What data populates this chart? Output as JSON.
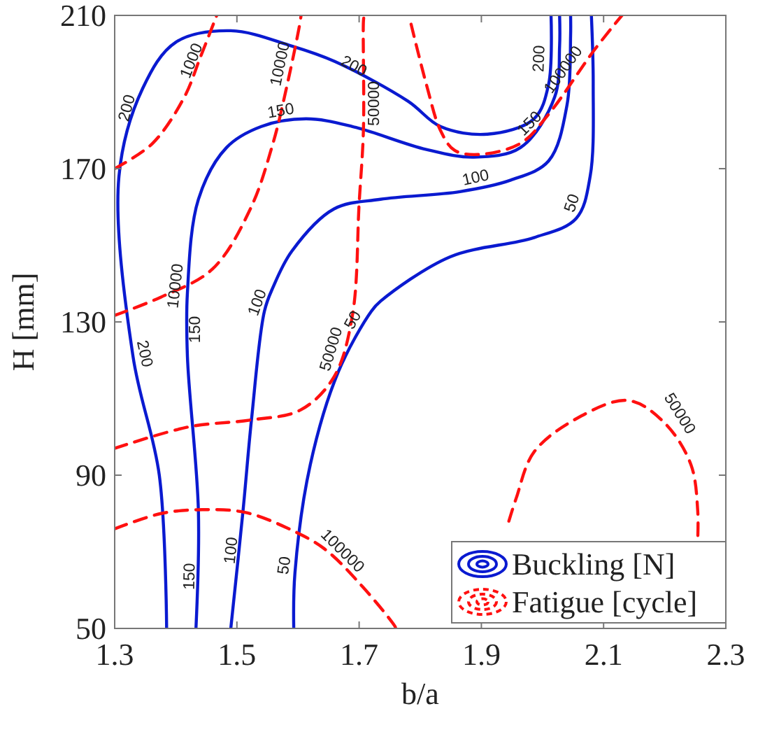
{
  "chart_data": {
    "type": "line",
    "xlabel": "b/a",
    "ylabel": "H [mm]",
    "xlim": [
      1.3,
      2.3
    ],
    "ylim": [
      50,
      210
    ],
    "xticks": [
      1.3,
      1.5,
      1.7,
      1.9,
      2.1,
      2.3
    ],
    "yticks": [
      50,
      90,
      130,
      170,
      210
    ],
    "grid": false,
    "legend": "bottom right",
    "series": [
      {
        "name": "Buckling [N]",
        "color": "#0a1ad0",
        "line_style": "solid",
        "x": [
          1.385,
          1.373,
          1.33,
          1.307,
          1.346,
          1.4,
          1.49,
          1.59,
          1.66,
          1.78,
          1.833,
          1.91,
          1.986,
          2.01,
          2.014
        ],
        "values": [
          50,
          90,
          121,
          168,
          191,
          203,
          206,
          202,
          198,
          187.6,
          181,
          179,
          183,
          192,
          210
        ]
      },
      {
        "color": "#0a1ad0",
        "line_style": "solid",
        "x": [
          1.433,
          1.437,
          1.419,
          1.419,
          1.437,
          1.483,
          1.54,
          1.613,
          1.689,
          1.81,
          1.888,
          1.964,
          2.02,
          2.028,
          2.028
        ],
        "values": [
          50,
          80.7,
          121,
          137.6,
          162,
          175.5,
          181,
          183,
          181,
          175,
          173,
          175.5,
          188.7,
          202,
          210
        ]
      },
      {
        "color": "#0a1ad0",
        "line_style": "solid",
        "x": [
          1.49,
          1.51,
          1.524,
          1.545,
          1.559,
          1.59,
          1.659,
          1.735,
          1.865,
          1.948,
          2.01,
          2.04,
          2.046,
          2.046
        ],
        "values": [
          50,
          80.7,
          104.7,
          132.8,
          139,
          148.5,
          159.5,
          162,
          164,
          167,
          172,
          186.5,
          204.7,
          210
        ]
      },
      {
        "color": "#0a1ad0",
        "line_style": "solid",
        "x": [
          1.593,
          1.595,
          1.62,
          1.666,
          1.72,
          1.735,
          1.849,
          1.986,
          2.055,
          2.078,
          2.083,
          2.08
        ],
        "values": [
          50,
          64.6,
          92.7,
          117,
          132.8,
          135.4,
          147,
          152,
          157,
          168,
          192,
          210
        ]
      },
      {
        "name": "Fatigue [cycle]",
        "color": "#ff1010",
        "line_style": "dashed",
        "x": [
          1.3,
          1.362,
          1.414,
          1.44,
          1.467
        ],
        "values": [
          170,
          176.6,
          188.7,
          199,
          210
        ]
      },
      {
        "color": "#ff1010",
        "line_style": "dashed",
        "x": [
          1.3,
          1.376,
          1.46,
          1.522,
          1.559,
          1.581,
          1.602,
          1.605
        ],
        "values": [
          131.7,
          136.5,
          143.8,
          159.5,
          176.6,
          191,
          207,
          210
        ]
      },
      {
        "color": "#ff1010",
        "line_style": "dashed",
        "x": [
          1.3,
          1.421,
          1.522,
          1.604,
          1.659,
          1.689,
          1.7,
          1.707,
          1.707,
          1.708
        ],
        "values": [
          97,
          102.6,
          104.4,
          107,
          115.7,
          131.7,
          161,
          180,
          208.4,
          210
        ]
      },
      {
        "color": "#ff1010",
        "line_style": "dashed",
        "x": [
          1.3,
          1.376,
          1.444,
          1.513,
          1.581,
          1.643,
          1.705,
          1.758,
          1.76
        ],
        "values": [
          76,
          80,
          81,
          80.3,
          76.3,
          70.8,
          61,
          50.7,
          50
        ]
      },
      {
        "color": "#ff1010",
        "line_style": "dashed",
        "x": [
          1.785,
          1.81,
          1.833,
          1.856,
          1.895,
          1.964,
          2.009,
          2.085,
          2.13
        ],
        "values": [
          207.7,
          192,
          180,
          174.8,
          173.7,
          176.6,
          184,
          201,
          210
        ]
      },
      {
        "color": "#ff1010",
        "line_style": "dashed",
        "x": [
          1.945,
          1.957,
          1.986,
          2.055,
          2.14,
          2.2,
          2.243,
          2.254,
          2.254
        ],
        "values": [
          78,
          84,
          96,
          104.7,
          109.5,
          103.6,
          92.7,
          80.7,
          73.4
        ]
      }
    ],
    "annotations": [
      {
        "text": "200",
        "x": 1.339,
        "y": 185
      },
      {
        "text": "200",
        "x": 1.33,
        "y": 121
      },
      {
        "text": "200",
        "x": 1.682,
        "y": 194
      },
      {
        "text": "200",
        "x": 2.014,
        "y": 198.6
      },
      {
        "text": "150",
        "x": 1.575,
        "y": 182
      },
      {
        "text": "150",
        "x": 1.414,
        "y": 128
      },
      {
        "text": "150",
        "x": 1.442,
        "y": 63.5
      },
      {
        "text": "150",
        "x": 1.993,
        "y": 179.6
      },
      {
        "text": "100",
        "x": 1.552,
        "y": 134
      },
      {
        "text": "100",
        "x": 1.51,
        "y": 70
      },
      {
        "text": "100",
        "x": 1.895,
        "y": 164.6
      },
      {
        "text": "50",
        "x": 1.707,
        "y": 129
      },
      {
        "text": "50",
        "x": 1.597,
        "y": 66
      },
      {
        "text": "50",
        "x": 2.067,
        "y": 160
      },
      {
        "text": "1000",
        "x": 1.444,
        "y": 197
      },
      {
        "text": "10000",
        "x": 1.59,
        "y": 196.7
      },
      {
        "text": "10000",
        "x": 1.419,
        "y": 139
      },
      {
        "text": "50000",
        "x": 1.707,
        "y": 187
      },
      {
        "text": "50000",
        "x": 1.673,
        "y": 122
      },
      {
        "text": "100000",
        "x": 1.659,
        "y": 68
      },
      {
        "text": "100000",
        "x": 2.05,
        "y": 194
      },
      {
        "text": "50000",
        "x": 2.208,
        "y": 104.4
      }
    ]
  }
}
